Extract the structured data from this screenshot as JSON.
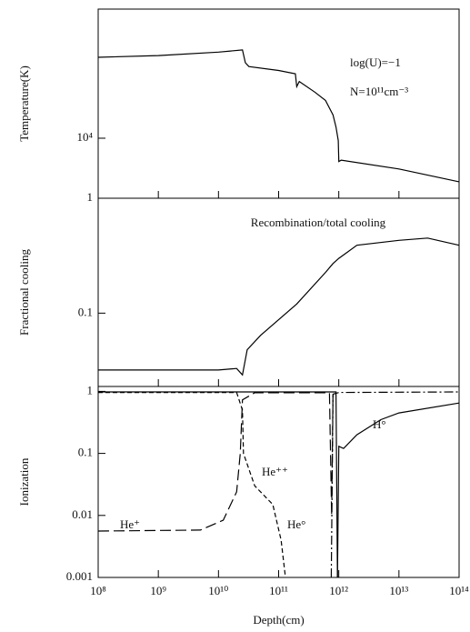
{
  "chart_data": [
    {
      "type": "line",
      "ylabel": "Temperature(K)",
      "yscale": "log",
      "xscale": "log",
      "xlim": [
        100000000.0,
        100000000000000.0
      ],
      "ylim": [
        6000,
        30000
      ],
      "yticks": [
        {
          "value": 10000,
          "label": "10⁴"
        }
      ],
      "annotations": [
        "log(U)=−1",
        "N=10¹¹cm⁻³"
      ],
      "series": [
        {
          "style": "solid",
          "color": "#000000",
          "x": [
            100000000.0,
            1000000000.0,
            10000000000.0,
            25000000000.0,
            28000000000.0,
            32000000000.0,
            100000000000.0,
            190000000000.0,
            200000000000.0,
            220000000000.0,
            400000000000.0,
            600000000000.0,
            800000000000.0,
            900000000000.0,
            980000000000.0,
            1000000000000.0,
            1050000000000.0,
            1100000000000.0,
            10000000000000.0,
            100000000000000.0
          ],
          "values": [
            19900,
            20200,
            20800,
            21200,
            19000,
            18400,
            17800,
            17300,
            15500,
            16200,
            14800,
            13800,
            12200,
            11000,
            9800,
            8200,
            8250,
            8300,
            7700,
            6900
          ]
        }
      ]
    },
    {
      "type": "line",
      "ylabel": "Fractional cooling",
      "yscale": "log",
      "xscale": "log",
      "title": "Recombination/total cooling",
      "xlim": [
        100000000.0,
        100000000000000.0
      ],
      "ylim": [
        0.023,
        1
      ],
      "yticks": [
        1,
        0.1
      ],
      "series": [
        {
          "style": "solid",
          "color": "#000000",
          "x": [
            100000000.0,
            1000000000.0,
            10000000000.0,
            20000000000.0,
            25000000000.0,
            30000000000.0,
            50000000000.0,
            200000000000.0,
            600000000000.0,
            800000000000.0,
            1000000000000.0,
            2000000000000.0,
            10000000000000.0,
            30000000000000.0,
            100000000000000.0
          ],
          "values": [
            0.032,
            0.032,
            0.032,
            0.033,
            0.029,
            0.048,
            0.064,
            0.12,
            0.226,
            0.27,
            0.3,
            0.39,
            0.43,
            0.45,
            0.39
          ]
        }
      ]
    },
    {
      "type": "line",
      "ylabel": "Ionization",
      "xlabel": "Depth(cm)",
      "yscale": "log",
      "xscale": "log",
      "xlim": [
        100000000.0,
        100000000000000.0
      ],
      "ylim": [
        0.001,
        1.2
      ],
      "yticks": [
        1,
        0.1,
        0.01,
        0.001
      ],
      "xticks": [
        {
          "value": 100000000.0,
          "label": "10⁸"
        },
        {
          "value": 1000000000.0,
          "label": "10⁹"
        },
        {
          "value": 10000000000.0,
          "label": "10¹⁰"
        },
        {
          "value": 100000000000.0,
          "label": "10¹¹"
        },
        {
          "value": 1000000000000.0,
          "label": "10¹²"
        },
        {
          "value": 10000000000000.0,
          "label": "10¹³"
        },
        {
          "value": 100000000000000.0,
          "label": "10¹⁴"
        }
      ],
      "series": [
        {
          "name": "He⁺",
          "style": "longdash",
          "color": "#000000",
          "x": [
            100000000.0,
            5000000000.0,
            12000000000.0,
            20000000000.0,
            23000000000.0,
            25000000000.0,
            40000000000.0,
            700000000000.0,
            760000000000.0,
            800000000000.0
          ],
          "values": [
            0.0056,
            0.0058,
            0.0084,
            0.024,
            0.1,
            0.73,
            0.95,
            0.95,
            0.01,
            0.95
          ]
        },
        {
          "name": "He⁺⁺",
          "style": "dashed",
          "color": "#000000",
          "x": [
            100000000.0,
            20000000000.0,
            25000000000.0,
            26000000000.0,
            40000000000.0,
            80000000000.0,
            110000000000.0,
            130000000000.0
          ],
          "values": [
            0.96,
            0.96,
            0.5,
            0.1,
            0.03,
            0.015,
            0.004,
            0.001
          ]
        },
        {
          "name": "He°",
          "style": "dashdot",
          "color": "#000000",
          "x": [
            750000000000.0,
            800000000000.0,
            1000000000000.0,
            100000000000000.0
          ],
          "values": [
            0.001,
            0.9,
            0.96,
            0.98
          ]
        },
        {
          "name": "H°",
          "style": "solid",
          "color": "#000000",
          "x": [
            950000000000.0,
            1000000000000.0,
            1200000000000.0,
            2000000000000.0,
            5000000000000.0,
            10000000000000.0,
            100000000000000.0
          ],
          "values": [
            0.001,
            0.13,
            0.12,
            0.2,
            0.35,
            0.45,
            0.65
          ]
        },
        {
          "style": "solid",
          "color": "#000000",
          "x": [
            100000000.0,
            900000000000.0,
            950000000000.0
          ],
          "values": [
            0.98,
            0.98,
            0.001
          ]
        }
      ]
    }
  ]
}
